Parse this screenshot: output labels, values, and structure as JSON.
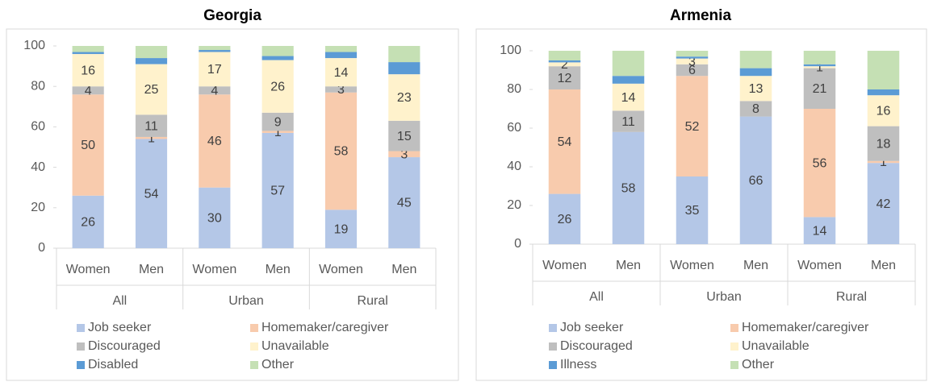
{
  "chart_data": [
    {
      "type": "bar",
      "stacked": true,
      "title": "Georgia",
      "categories": [
        "Women",
        "Men",
        "Women",
        "Men",
        "Women",
        "Men"
      ],
      "groups": [
        "All",
        "Urban",
        "Rural"
      ],
      "ylim": [
        0,
        100
      ],
      "yticks": [
        0,
        20,
        40,
        60,
        80,
        100
      ],
      "legend": "bottom",
      "series": [
        {
          "name": "Job seeker",
          "color": "#b4c7e7",
          "labels": true,
          "values": [
            26,
            54,
            30,
            57,
            19,
            45
          ]
        },
        {
          "name": "Homemaker/caregiver",
          "color": "#f8cbad",
          "labels": true,
          "values": [
            50,
            1,
            46,
            1,
            58,
            3
          ]
        },
        {
          "name": "Discouraged",
          "color": "#bfbfbf",
          "labels": true,
          "values": [
            4,
            11,
            4,
            9,
            3,
            15
          ]
        },
        {
          "name": "Unavailable",
          "color": "#fff2cc",
          "labels": true,
          "values": [
            16,
            25,
            17,
            26,
            14,
            23
          ]
        },
        {
          "name": "Disabled",
          "color": "#5b9bd5",
          "labels": false,
          "values": [
            1,
            3,
            1,
            2,
            3,
            6
          ]
        },
        {
          "name": "Other",
          "color": "#c5e0b4",
          "labels": false,
          "values": [
            3,
            6,
            2,
            5,
            3,
            8
          ]
        }
      ]
    },
    {
      "type": "bar",
      "stacked": true,
      "title": "Armenia",
      "categories": [
        "Women",
        "Men",
        "Women",
        "Men",
        "Women",
        "Men"
      ],
      "groups": [
        "All",
        "Urban",
        "Rural"
      ],
      "ylim": [
        0,
        100
      ],
      "yticks": [
        0,
        20,
        40,
        60,
        80,
        100
      ],
      "legend": "bottom",
      "series": [
        {
          "name": "Job seeker",
          "color": "#b4c7e7",
          "labels": true,
          "values": [
            26,
            58,
            35,
            66,
            14,
            42
          ]
        },
        {
          "name": "Homemaker/caregiver",
          "color": "#f8cbad",
          "labels": true,
          "values": [
            54,
            0,
            52,
            0,
            56,
            1
          ]
        },
        {
          "name": "Discouraged",
          "color": "#bfbfbf",
          "labels": true,
          "values": [
            12,
            11,
            6,
            8,
            21,
            18
          ]
        },
        {
          "name": "Unavailable",
          "color": "#fff2cc",
          "labels": true,
          "values": [
            2,
            14,
            3,
            13,
            1,
            16
          ]
        },
        {
          "name": "Illness",
          "color": "#5b9bd5",
          "labels": false,
          "values": [
            1,
            4,
            1,
            4,
            1,
            3
          ]
        },
        {
          "name": "Other",
          "color": "#c5e0b4",
          "labels": false,
          "values": [
            5,
            13,
            3,
            9,
            7,
            20
          ]
        }
      ]
    }
  ]
}
